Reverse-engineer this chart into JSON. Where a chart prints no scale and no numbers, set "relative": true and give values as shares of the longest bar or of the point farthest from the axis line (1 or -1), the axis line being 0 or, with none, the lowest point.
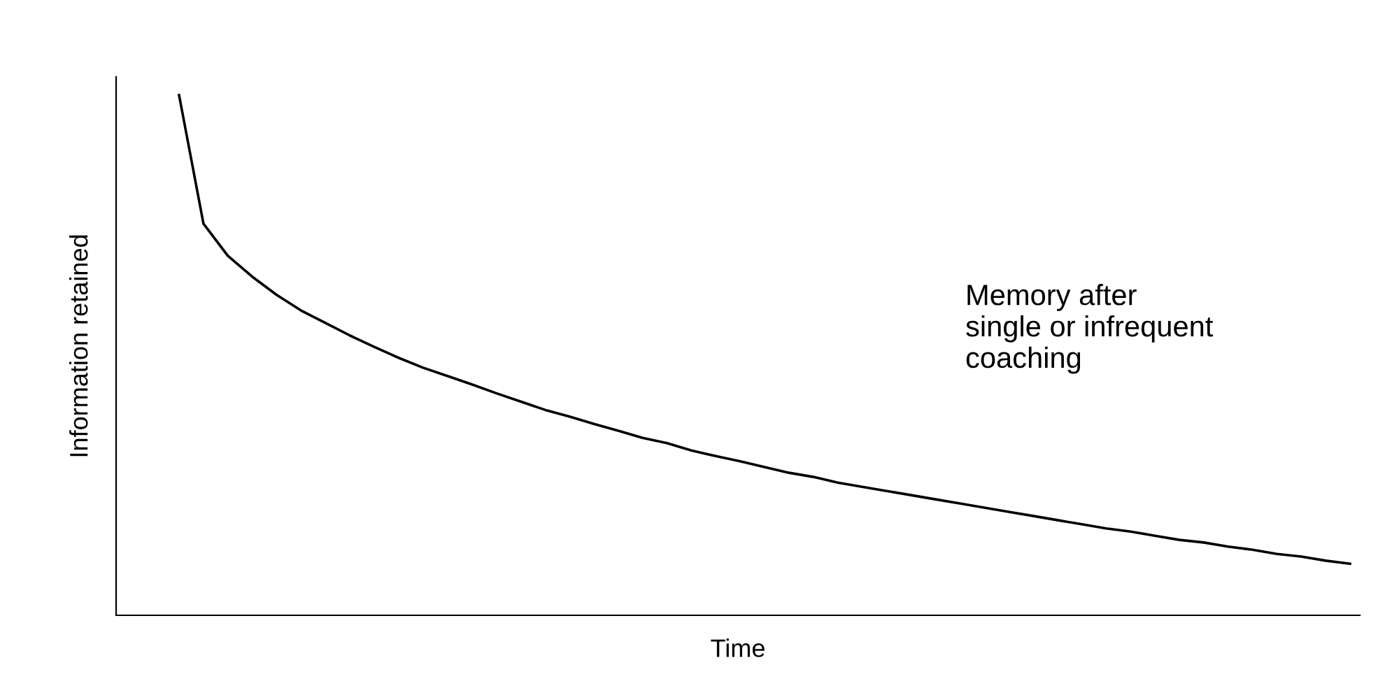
{
  "chart_data": {
    "type": "line",
    "relative": true,
    "xlabel": "Time",
    "ylabel": "Information retained",
    "annotations": [
      "Memory after\nsingle or infrequent\ncoaching"
    ],
    "categories": [
      null,
      null,
      null,
      null,
      null,
      null,
      null,
      null,
      null,
      null,
      null,
      null,
      null,
      null,
      null,
      null,
      null,
      null,
      null,
      null,
      null,
      null,
      null,
      null,
      null,
      null,
      null,
      null,
      null,
      null,
      null,
      null,
      null,
      null,
      null,
      null,
      null,
      null,
      null,
      null,
      null,
      null,
      null,
      null,
      null,
      null,
      null,
      null,
      null
    ],
    "series": [
      {
        "color": "#000000",
        "values": [
          1.0,
          0.753,
          0.691,
          0.651,
          0.616,
          0.586,
          0.562,
          0.538,
          0.516,
          0.495,
          0.476,
          0.46,
          0.444,
          0.427,
          0.411,
          0.395,
          0.382,
          0.368,
          0.355,
          0.341,
          0.331,
          0.317,
          0.306,
          0.296,
          0.285,
          0.274,
          0.266,
          0.255,
          0.247,
          0.239,
          0.231,
          0.223,
          0.215,
          0.207,
          0.199,
          0.191,
          0.183,
          0.175,
          0.167,
          0.161,
          0.153,
          0.145,
          0.14,
          0.132,
          0.126,
          0.118,
          0.113,
          0.105,
          0.099
        ]
      }
    ],
    "legend": false,
    "marker": "none",
    "line_style": "solid"
  }
}
